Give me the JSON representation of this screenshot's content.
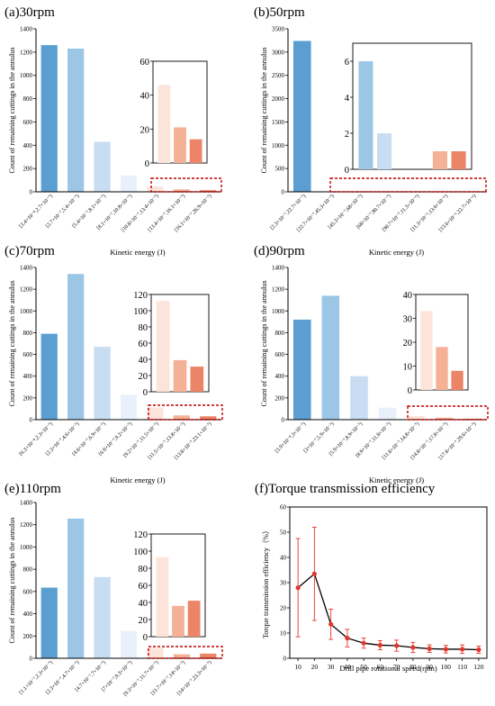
{
  "colors": {
    "c1": "#5b9fd2",
    "c2": "#9cc6e6",
    "c3": "#c9ddf2",
    "c4": "#e8f1fb",
    "c5": "#fde4da",
    "c6": "#f5b196",
    "c7": "#ec8567",
    "dash": "#c00000",
    "line": "#000000",
    "err": "#e8342c"
  },
  "ylabel_counts": "Count of remaining cuttings in the annulus",
  "chart_data": [
    {
      "type": "bar",
      "title": "(a)30rpm",
      "xlabel": "Kinetic energy (J)",
      "ylabel": "Count of remaining cuttings in the annulus",
      "ylim": [
        0,
        1400
      ],
      "yticks": [
        0,
        200,
        400,
        600,
        800,
        1000,
        1200,
        1400
      ],
      "categories": [
        "[3.4×10⁻⁸,2.7×10⁻⁷)",
        "[2.7×10⁻⁷,5.4×10⁻⁷)",
        "[5.4×10⁻⁷,8.1×10⁻⁷)",
        "[8.1×10⁻⁷,10.8×10⁻⁷)",
        "[10.8×10⁻⁷,13.4×10⁻⁷)",
        "[13.4×10⁻⁷,16.1×10⁻⁷)",
        "[16.1×10⁻⁷,26.9×10⁻⁷)"
      ],
      "values": [
        1260,
        1230,
        430,
        140,
        46,
        21,
        14
      ],
      "inset": {
        "ylim": [
          0,
          60
        ],
        "yticks": [
          0,
          20,
          40,
          60
        ]
      }
    },
    {
      "type": "bar",
      "title": "(b)50rpm",
      "xlabel": "Kinetic energy (J)",
      "ylabel": "Count of remaining cuttings in the annulus",
      "ylim": [
        0,
        3500
      ],
      "yticks": [
        0,
        500,
        1000,
        1500,
        2000,
        2500,
        3000,
        3500
      ],
      "categories": [
        "[2.3×10⁻⁷,22.7×10⁻⁷)",
        "[22.7×10⁻⁷,45.3×10⁻⁷)",
        "[45.3×10⁻⁷,68×10⁻⁷)",
        "[68×10⁻⁷,90.7×10⁻⁷)",
        "[90.7×10⁻⁷,11.3×10⁻⁶)",
        "[11.3×10⁻⁶,13.6×10⁻⁶)",
        "[13.6×10⁻⁶,22.7×10⁻⁶)"
      ],
      "values": [
        3240,
        6,
        2,
        0,
        0,
        1,
        1
      ],
      "inset": {
        "ylim": [
          0,
          7
        ],
        "yticks": [
          0,
          2,
          4,
          6
        ]
      }
    },
    {
      "type": "bar",
      "title": "(c)70rpm",
      "xlabel": "Kinetic energy (J)",
      "ylabel": "Count of remaining cuttings in the annulus",
      "ylim": [
        0,
        1400
      ],
      "yticks": [
        0,
        200,
        400,
        600,
        800,
        1000,
        1200,
        1400
      ],
      "categories": [
        "[6.3×10⁻⁸,2.3×10⁻⁷)",
        "[2.3×10⁻⁷,4.6×10⁻⁷)",
        "[4.6×10⁻⁷,6.9×10⁻⁷)",
        "[6.9×10⁻⁷,9.2×10⁻⁷)",
        "[9.2×10⁻⁷,11.5×10⁻⁷)",
        "[11.5×10⁻⁷,13.8×10⁻⁷)",
        "[13.8×10⁻⁷,23.1×10⁻⁷)"
      ],
      "values": [
        790,
        1340,
        670,
        230,
        112,
        39,
        31
      ],
      "inset": {
        "ylim": [
          0,
          120
        ],
        "yticks": [
          0,
          20,
          40,
          60,
          80,
          100,
          120
        ]
      }
    },
    {
      "type": "bar",
      "title": "(d)90rpm",
      "xlabel": "Kinetic energy (J)",
      "ylabel": "Count of remaining cuttings in the annulus",
      "ylim": [
        0,
        1400
      ],
      "yticks": [
        0,
        200,
        400,
        600,
        800,
        1000,
        1200,
        1400
      ],
      "categories": [
        "[3.9×10⁻⁸,3×10⁻⁷)",
        "[3×10⁻⁷,5.9×10⁻⁷)",
        "[5.9×10⁻⁷,8.9×10⁻⁷)",
        "[8.9×10⁻⁷,11.8×10⁻⁷)",
        "[11.8×10⁻⁷,14.8×10⁻⁷)",
        "[14.8×10⁻⁷,17.8×10⁻⁷)",
        "[17.8×10⁻⁷,29.6×10⁻⁷)"
      ],
      "values": [
        920,
        1140,
        400,
        110,
        33,
        18,
        8
      ],
      "inset": {
        "ylim": [
          0,
          40
        ],
        "yticks": [
          0,
          10,
          20,
          30,
          40
        ]
      }
    },
    {
      "type": "bar",
      "title": "(e)110rpm",
      "xlabel": "Kinetic energy (J)",
      "ylabel": "Count of remaining cuttings in the annulus",
      "ylim": [
        0,
        1400
      ],
      "yticks": [
        0,
        200,
        400,
        600,
        800,
        1000,
        1200,
        1400
      ],
      "categories": [
        "[1.1×10⁻⁷,2.3×10⁻⁷)",
        "[2.3×10⁻⁷,4.7×10⁻⁷)",
        "[4.7×10⁻⁷,7×10⁻⁷)",
        "[7×10⁻⁷,9.3×10⁻⁷)",
        "[9.3×10⁻⁷,11.7×10⁻⁷)",
        "[11.7×10⁻⁷,14×10⁻⁷)",
        "[14×10⁻⁷,23.3×10⁻⁷)"
      ],
      "values": [
        635,
        1255,
        730,
        245,
        93,
        36,
        42
      ],
      "inset": {
        "ylim": [
          0,
          120
        ],
        "yticks": [
          0,
          20,
          40,
          60,
          80,
          100,
          120
        ]
      }
    },
    {
      "type": "line",
      "title": "(f)Torque transmission efficiency",
      "xlabel": "Drill pipe rotational speed(rpm)",
      "ylabel": "Torque transmission efficiency（%）",
      "xlim": [
        5,
        125
      ],
      "ylim": [
        0,
        60
      ],
      "xticks": [
        10,
        20,
        30,
        40,
        50,
        60,
        70,
        80,
        90,
        100,
        110,
        120
      ],
      "yticks": [
        0,
        10,
        20,
        30,
        40,
        50,
        60
      ],
      "x": [
        10,
        20,
        30,
        40,
        50,
        60,
        70,
        80,
        90,
        100,
        110,
        120
      ],
      "y": [
        28,
        33.5,
        13.5,
        8,
        6,
        5.2,
        5,
        4.3,
        3.8,
        3.6,
        3.6,
        3.4
      ],
      "err": [
        19.5,
        18.5,
        6,
        3.5,
        2,
        1.8,
        2.2,
        2,
        1.5,
        1.5,
        1.7,
        1.4
      ]
    }
  ]
}
